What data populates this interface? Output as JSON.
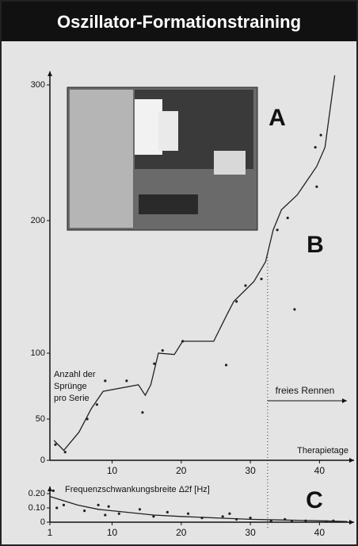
{
  "chart_data": [
    {
      "type": "line",
      "title": "Oszillator-Formationstraining",
      "x_label": "Therapietage",
      "y_label": [
        "Anzahl der",
        "Sprünge",
        "pro Serie"
      ],
      "annotations": [
        "A",
        "B"
      ],
      "phase_label": "freies Rennen",
      "phase_start": 32.5,
      "xlim": [
        1,
        45
      ],
      "xticks": [
        10,
        20,
        30,
        40
      ],
      "ylim": [
        0,
        310
      ],
      "yticks": [
        0,
        50,
        100,
        200,
        300
      ],
      "series": [
        {
          "type": "line",
          "color": "#222222",
          "x": [
            1.6,
            3,
            5.2,
            7,
            8.7,
            13.8,
            14.8,
            15.6,
            16.7,
            19,
            20.2,
            24.7,
            26.7,
            27.6,
            30.5,
            32.2,
            33.3,
            34.5,
            36.8,
            39.6,
            40.8,
            42.2
          ],
          "values": [
            24,
            12,
            34,
            58,
            71,
            76,
            68,
            76,
            100,
            99,
            109,
            109,
            130,
            139,
            154,
            169,
            193,
            208,
            219,
            240,
            254,
            307
          ]
        },
        {
          "type": "scatter",
          "color": "#222222",
          "x": [
            1.8,
            3.2,
            6.4,
            7.8,
            9,
            12.1,
            14.4,
            16.1,
            17.3,
            20.2,
            26.5,
            28,
            29.3,
            31.6,
            33.9,
            35.4,
            36.4,
            39.4,
            39.6,
            40.2
          ],
          "values": [
            19,
            10,
            50,
            61,
            79,
            79,
            55,
            92,
            102,
            109,
            91,
            139,
            151,
            156,
            193,
            202,
            133,
            254,
            225,
            263
          ]
        }
      ]
    },
    {
      "type": "line",
      "y_label": "Frequenzschwankungsbreite Δ2f [Hz]",
      "annotations": [
        "C"
      ],
      "xlim": [
        1,
        45
      ],
      "xticks": [
        1,
        10,
        20,
        30,
        40
      ],
      "ylim": [
        0,
        0.25
      ],
      "yticks": [
        {
          "value": 0,
          "label": "0"
        },
        {
          "value": 0.1,
          "label": "0.10"
        },
        {
          "value": 0.2,
          "label": "0.20"
        }
      ],
      "series": [
        {
          "type": "line",
          "color": "#222222",
          "x": [
            1,
            3,
            5,
            8,
            12,
            16,
            20,
            25,
            30,
            35,
            40,
            44
          ],
          "values": [
            0.18,
            0.15,
            0.12,
            0.09,
            0.07,
            0.05,
            0.04,
            0.03,
            0.02,
            0.015,
            0.01,
            0.005
          ]
        },
        {
          "type": "scatter",
          "color": "#222222",
          "x": [
            1.5,
            2,
            3,
            6,
            8,
            9,
            9.5,
            11,
            14,
            16,
            18,
            21,
            23,
            26,
            27,
            28,
            30,
            33,
            35,
            36,
            38,
            41,
            42
          ],
          "values": [
            0.22,
            0.1,
            0.12,
            0.08,
            0.12,
            0.05,
            0.11,
            0.06,
            0.09,
            0.04,
            0.07,
            0.06,
            0.03,
            0.04,
            0.06,
            0.02,
            0.03,
            0.01,
            0.02,
            0.005,
            0.01,
            0.005,
            0.01
          ]
        }
      ]
    }
  ]
}
